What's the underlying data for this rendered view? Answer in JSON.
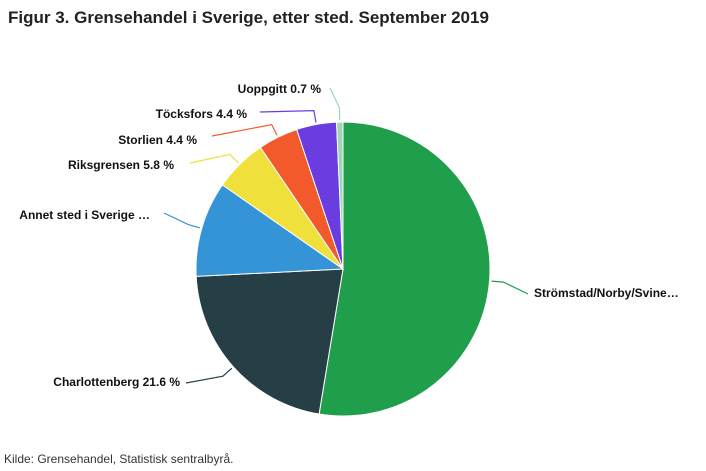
{
  "title": "Figur 3. Grensehandel i Sverige, etter sted. September 2019",
  "source": "Kilde: Grensehandel, Statistisk sentralbyrå.",
  "chart_data": {
    "type": "pie",
    "title": "Figur 3. Grensehandel i Sverige, etter sted. September 2019",
    "start_angle_deg": 0,
    "slices": [
      {
        "name": "Strömstad/Norby/Svinesund",
        "value": 52.6,
        "color": "#1f9e4b",
        "label": "Strömstad/Norby/Svine…"
      },
      {
        "name": "Charlottenberg",
        "value": 21.6,
        "color": "#263f47",
        "label": "Charlottenberg 21.6 %"
      },
      {
        "name": "Annet sted i Sverige",
        "value": 10.5,
        "color": "#3594d6",
        "label": "Annet sted i Sverige …"
      },
      {
        "name": "Riksgrensen",
        "value": 5.8,
        "color": "#f0e03c",
        "label": "Riksgrensen 5.8 %"
      },
      {
        "name": "Storlien",
        "value": 4.4,
        "color": "#f25a2c",
        "label": "Storlien 4.4 %"
      },
      {
        "name": "Töcksfors",
        "value": 4.4,
        "color": "#6a3de0",
        "label": "Töcksfors 4.4 %"
      },
      {
        "name": "Uoppgitt",
        "value": 0.7,
        "color": "#9fd4b6",
        "label": "Uoppgitt 0.7 %"
      }
    ]
  }
}
